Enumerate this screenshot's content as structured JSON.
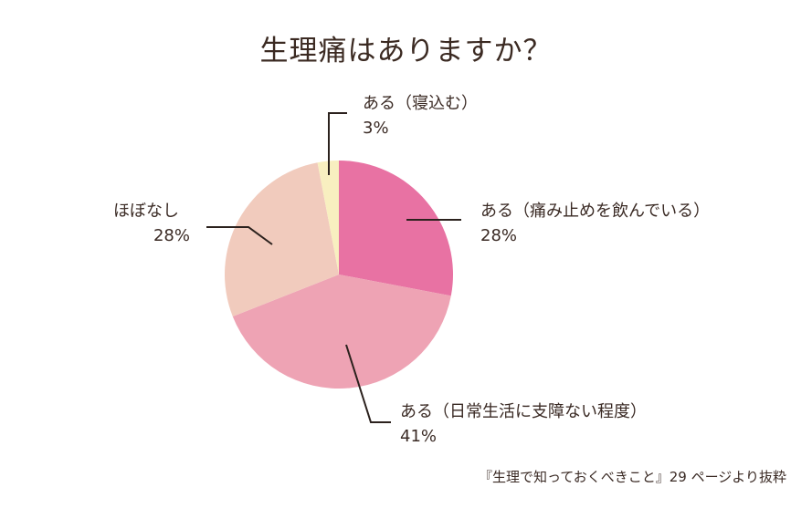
{
  "chart_data": {
    "type": "pie",
    "title": "生理痛はありますか？",
    "start_angle_deg": 0,
    "direction": "clockwise",
    "slices": [
      {
        "label": "ある（痛み止めを飲んでいる）",
        "value": 28,
        "display": "28%",
        "color": "#e872a3"
      },
      {
        "label": "ある（日常生活に支障ない程度）",
        "value": 41,
        "display": "41%",
        "color": "#eea3b4"
      },
      {
        "label": "ほぼなし",
        "value": 28,
        "display": "28%",
        "color": "#f1cbbd"
      },
      {
        "label": "ある（寝込む）",
        "value": 3,
        "display": "3%",
        "color": "#f8efc0"
      }
    ],
    "legend": "none (leader-line labels)",
    "source": "『生理で知っておくべきこと』29 ページより抜粋"
  },
  "title": "生理痛はありますか？",
  "labels": {
    "painkillers": {
      "name": "ある（痛み止めを飲んでいる）",
      "pct": "28%"
    },
    "no_disruption": {
      "name": "ある（日常生活に支障ない程度）",
      "pct": "41%"
    },
    "almost_none": {
      "name": "ほぼなし",
      "pct": "28%"
    },
    "bedridden": {
      "name": "ある（寝込む）",
      "pct": "3%"
    }
  },
  "source": "『生理で知っておくべきこと』29 ページより抜粋",
  "colors": {
    "line": "#2b211d"
  }
}
